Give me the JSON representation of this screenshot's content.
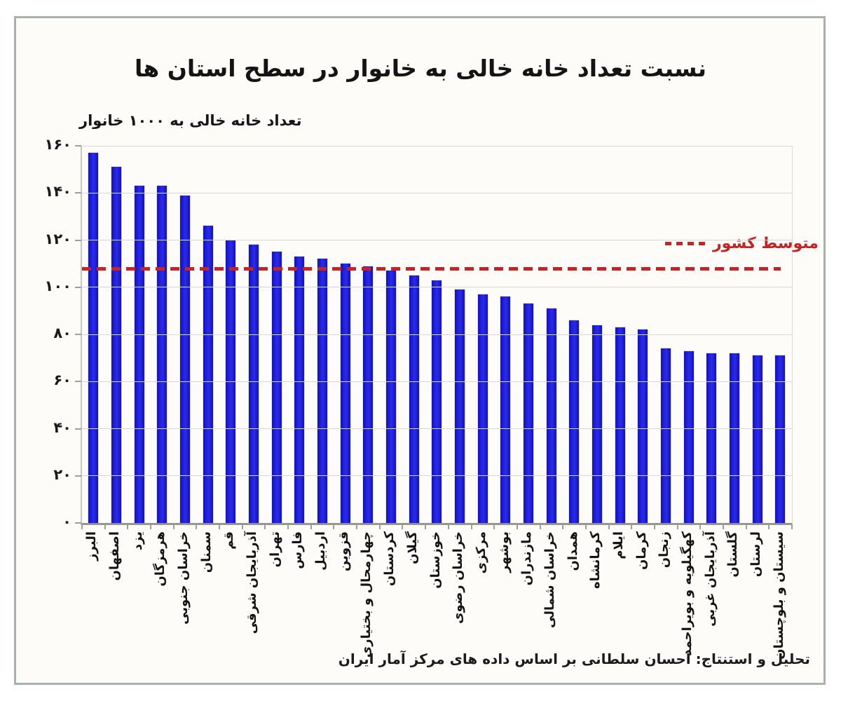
{
  "chart_data": {
    "type": "bar",
    "title": "نسبت تعداد خانه خالی به خانوار در سطح استان ها",
    "y_axis_label": "تعداد خانه خالی به ۱۰۰۰ خانوار",
    "caption": "تحلیل و استنتاج: احسان سلطانی بر اساس داده های مرکز آمار ایران",
    "categories": [
      "البرز",
      "اصفهان",
      "یزد",
      "هرمزگان",
      "خراسان جنوبی",
      "سمنان",
      "قم",
      "آذربایجان شرقی",
      "تهران",
      "فارس",
      "اردبیل",
      "قزوین",
      "چهارمحال و بختیاری",
      "کردستان",
      "گیلان",
      "خوزستان",
      "خراسان رضوی",
      "مرکزی",
      "بوشهر",
      "مازندران",
      "خراسان شمالی",
      "همدان",
      "کرمانشاه",
      "ایلام",
      "کرمان",
      "زنجان",
      "کهگیلویه و بویراحمد",
      "آذربایجان غربی",
      "گلستان",
      "لرستان",
      "سیستان و بلوچستان"
    ],
    "values": [
      157,
      151,
      143,
      143,
      139,
      126,
      120,
      118,
      115,
      113,
      112,
      110,
      109,
      107,
      105,
      103,
      99,
      97,
      96,
      93,
      91,
      86,
      84,
      83,
      82,
      74,
      73,
      72,
      72,
      71,
      71
    ],
    "average_line": {
      "label": "متوسط کشور",
      "value": 108
    },
    "y_ticks": [
      {
        "value": 0,
        "label": "۰"
      },
      {
        "value": 20,
        "label": "۲۰"
      },
      {
        "value": 40,
        "label": "۴۰"
      },
      {
        "value": 60,
        "label": "۶۰"
      },
      {
        "value": 80,
        "label": "۸۰"
      },
      {
        "value": 100,
        "label": "۱۰۰"
      },
      {
        "value": 120,
        "label": "۱۲۰"
      },
      {
        "value": 140,
        "label": "۱۴۰"
      },
      {
        "value": 160,
        "label": "۱۶۰"
      }
    ],
    "ylim": [
      0,
      160
    ],
    "grid": "horizontal",
    "legend_position": "right-of-average-line",
    "bar_color": "#2121dd",
    "average_line_color": "#c42424",
    "gridline_color": "#d9d7d2"
  }
}
